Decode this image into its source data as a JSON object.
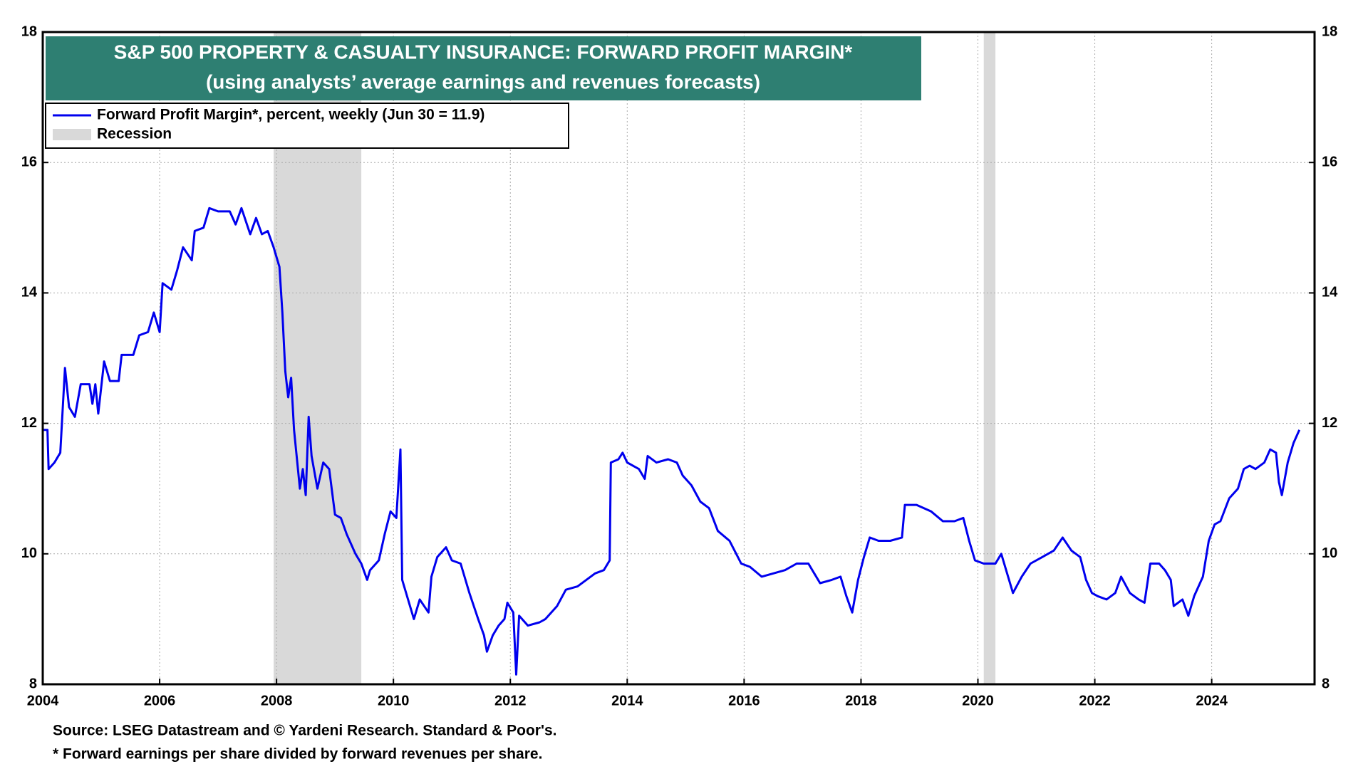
{
  "chart_data": {
    "type": "line",
    "title": "S&P 500 PROPERTY & CASUALTY INSURANCE: FORWARD PROFIT MARGIN*",
    "subtitle": "(using analysts’ average earnings and revenues forecasts)",
    "source": "Source: LSEG Datastream and © Yardeni Research. Standard & Poor's.",
    "footnote": "* Forward earnings per share divided by forward revenues per share.",
    "xlim": [
      2004,
      2025.76
    ],
    "xticks": [
      2004,
      2006,
      2008,
      2010,
      2012,
      2014,
      2016,
      2018,
      2020,
      2022,
      2024
    ],
    "ylim": [
      8,
      18
    ],
    "yticks": [
      8,
      10,
      12,
      14,
      16,
      18
    ],
    "y2lim": [
      8,
      18
    ],
    "y2ticks": [
      8,
      10,
      12,
      14,
      16,
      18
    ],
    "grid": true,
    "recession": {
      "name": "Recession",
      "color": "#d9d9d9",
      "spans": [
        [
          2007.95,
          2009.45
        ],
        [
          2020.1,
          2020.3
        ]
      ]
    },
    "series": [
      {
        "name": "Forward Profit Margin*, percent, weekly (Jun 30 = 11.9)",
        "color": "#0000ee",
        "x": [
          2004.0,
          2004.08,
          2004.1,
          2004.2,
          2004.3,
          2004.38,
          2004.45,
          2004.55,
          2004.65,
          2004.8,
          2004.85,
          2004.9,
          2004.95,
          2005.05,
          2005.15,
          2005.3,
          2005.35,
          2005.55,
          2005.65,
          2005.8,
          2005.9,
          2006.0,
          2006.05,
          2006.2,
          2006.3,
          2006.4,
          2006.55,
          2006.6,
          2006.75,
          2006.85,
          2007.0,
          2007.2,
          2007.3,
          2007.4,
          2007.55,
          2007.65,
          2007.75,
          2007.85,
          2007.95,
          2008.05,
          2008.1,
          2008.15,
          2008.2,
          2008.25,
          2008.3,
          2008.4,
          2008.45,
          2008.5,
          2008.55,
          2008.6,
          2008.7,
          2008.8,
          2008.9,
          2009.0,
          2009.1,
          2009.2,
          2009.35,
          2009.45,
          2009.55,
          2009.6,
          2009.75,
          2009.85,
          2009.95,
          2010.05,
          2010.12,
          2010.15,
          2010.25,
          2010.35,
          2010.45,
          2010.6,
          2010.65,
          2010.75,
          2010.9,
          2011.0,
          2011.15,
          2011.3,
          2011.45,
          2011.55,
          2011.6,
          2011.7,
          2011.8,
          2011.9,
          2011.95,
          2012.05,
          2012.1,
          2012.15,
          2012.3,
          2012.5,
          2012.6,
          2012.8,
          2012.95,
          2013.15,
          2013.3,
          2013.45,
          2013.6,
          2013.7,
          2013.72,
          2013.85,
          2013.92,
          2014.0,
          2014.2,
          2014.3,
          2014.35,
          2014.5,
          2014.7,
          2014.85,
          2014.95,
          2015.1,
          2015.25,
          2015.4,
          2015.55,
          2015.75,
          2015.95,
          2016.1,
          2016.3,
          2016.5,
          2016.7,
          2016.9,
          2017.1,
          2017.3,
          2017.5,
          2017.65,
          2017.75,
          2017.85,
          2017.95,
          2018.05,
          2018.15,
          2018.3,
          2018.5,
          2018.7,
          2018.75,
          2018.95,
          2019.2,
          2019.4,
          2019.6,
          2019.75,
          2019.85,
          2019.95,
          2020.1,
          2020.3,
          2020.4,
          2020.5,
          2020.6,
          2020.75,
          2020.9,
          2021.1,
          2021.3,
          2021.45,
          2021.6,
          2021.75,
          2021.85,
          2021.95,
          2022.05,
          2022.2,
          2022.35,
          2022.45,
          2022.6,
          2022.75,
          2022.85,
          2022.95,
          2023.1,
          2023.2,
          2023.3,
          2023.35,
          2023.5,
          2023.6,
          2023.7,
          2023.85,
          2023.95,
          2024.05,
          2024.15,
          2024.3,
          2024.45,
          2024.55,
          2024.65,
          2024.75,
          2024.9,
          2025.0,
          2025.1,
          2025.15,
          2025.2,
          2025.3,
          2025.4,
          2025.5
        ],
        "values": [
          11.9,
          11.9,
          11.3,
          11.4,
          11.55,
          12.85,
          12.25,
          12.1,
          12.6,
          12.6,
          12.3,
          12.6,
          12.15,
          12.95,
          12.65,
          12.65,
          13.05,
          13.05,
          13.35,
          13.4,
          13.7,
          13.4,
          14.15,
          14.05,
          14.35,
          14.7,
          14.5,
          14.95,
          15.0,
          15.3,
          15.25,
          15.25,
          15.05,
          15.3,
          14.9,
          15.15,
          14.9,
          14.95,
          14.7,
          14.4,
          13.7,
          12.8,
          12.4,
          12.7,
          11.9,
          11.0,
          11.3,
          10.9,
          12.1,
          11.5,
          11.0,
          11.4,
          11.3,
          10.6,
          10.55,
          10.3,
          10.0,
          9.85,
          9.6,
          9.75,
          9.9,
          10.3,
          10.65,
          10.55,
          11.6,
          9.6,
          9.3,
          9.0,
          9.3,
          9.1,
          9.65,
          9.95,
          10.1,
          9.9,
          9.85,
          9.4,
          9.0,
          8.75,
          8.5,
          8.75,
          8.9,
          9.0,
          9.25,
          9.1,
          8.15,
          9.05,
          8.9,
          8.95,
          9.0,
          9.2,
          9.45,
          9.5,
          9.6,
          9.7,
          9.75,
          9.9,
          11.4,
          11.45,
          11.55,
          11.4,
          11.3,
          11.15,
          11.5,
          11.4,
          11.45,
          11.4,
          11.2,
          11.05,
          10.8,
          10.7,
          10.35,
          10.2,
          9.85,
          9.8,
          9.65,
          9.7,
          9.75,
          9.85,
          9.85,
          9.55,
          9.6,
          9.65,
          9.35,
          9.1,
          9.6,
          9.95,
          10.25,
          10.2,
          10.2,
          10.25,
          10.75,
          10.75,
          10.65,
          10.5,
          10.5,
          10.55,
          10.2,
          9.9,
          9.85,
          9.85,
          10.0,
          9.7,
          9.4,
          9.65,
          9.85,
          9.95,
          10.05,
          10.25,
          10.05,
          9.95,
          9.6,
          9.4,
          9.35,
          9.3,
          9.4,
          9.65,
          9.4,
          9.3,
          9.25,
          9.85,
          9.85,
          9.75,
          9.6,
          9.2,
          9.3,
          9.05,
          9.35,
          9.65,
          10.2,
          10.45,
          10.5,
          10.85,
          11.0,
          11.3,
          11.35,
          11.3,
          11.4,
          11.6,
          11.55,
          11.1,
          10.9,
          11.4,
          11.7,
          11.9
        ]
      }
    ]
  }
}
